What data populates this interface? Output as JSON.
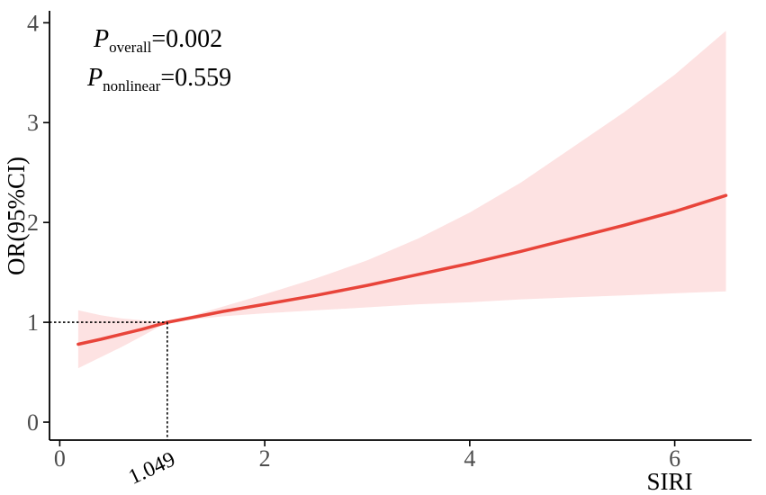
{
  "chart_data": {
    "type": "line",
    "xlabel": "SIRI",
    "ylabel": "OR(95%CI)",
    "xlim": [
      -0.1,
      6.75
    ],
    "ylim": [
      -0.18,
      4.12
    ],
    "xticks": [
      0,
      2,
      4,
      6
    ],
    "yticks": [
      0,
      1,
      2,
      3,
      4
    ],
    "grid": false,
    "reference": {
      "x": 1.049,
      "y": 1,
      "label": "1.049"
    },
    "annotations": [
      {
        "P": "P",
        "sub": "overall",
        "value": "=0.002"
      },
      {
        "P": "P",
        "sub": "nonlinear",
        "value": "=0.559"
      }
    ],
    "series": [
      {
        "x": [
          0.18,
          0.4,
          0.6,
          0.8,
          1.049,
          1.3,
          1.6,
          2.0,
          2.5,
          3.0,
          3.5,
          4.0,
          4.5,
          5.0,
          5.5,
          6.0,
          6.5
        ],
        "y": [
          0.78,
          0.83,
          0.88,
          0.93,
          1.0,
          1.05,
          1.11,
          1.18,
          1.27,
          1.37,
          1.48,
          1.59,
          1.71,
          1.84,
          1.97,
          2.11,
          2.27
        ],
        "lower": [
          0.54,
          0.65,
          0.75,
          0.86,
          1.0,
          1.03,
          1.06,
          1.09,
          1.12,
          1.15,
          1.18,
          1.2,
          1.23,
          1.25,
          1.27,
          1.29,
          1.31
        ],
        "upper": [
          1.12,
          1.07,
          1.04,
          1.02,
          1.0,
          1.07,
          1.16,
          1.28,
          1.44,
          1.62,
          1.84,
          2.1,
          2.4,
          2.75,
          3.1,
          3.48,
          3.92
        ]
      }
    ],
    "colors": {
      "line": "#e8443a",
      "band": "#fde2e2",
      "axis": "#000000",
      "reference": "#000000"
    }
  }
}
